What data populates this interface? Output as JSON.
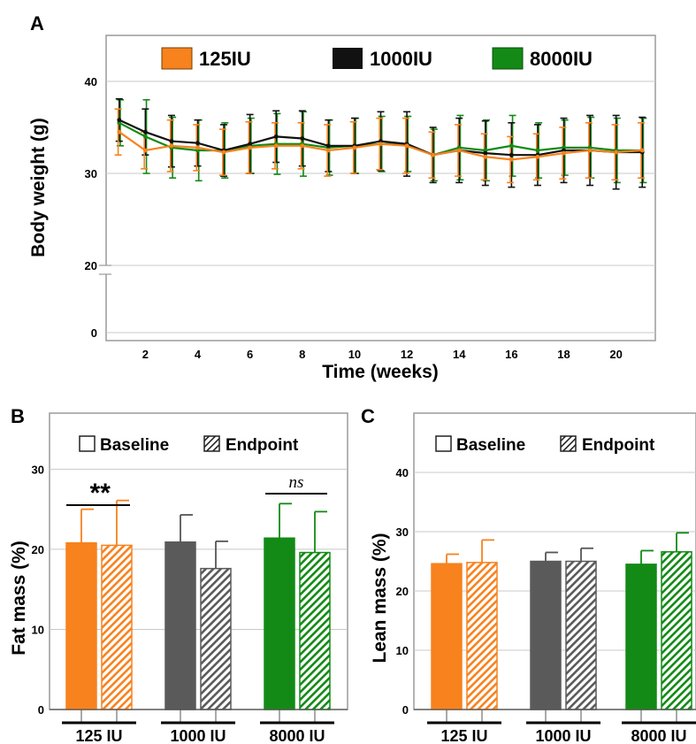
{
  "panel_labels": {
    "a": "A",
    "b": "B",
    "c": "C"
  },
  "colors": {
    "orange": "#f7821e",
    "black": "#111111",
    "green": "#138a16",
    "grey": "#5a5a5a"
  },
  "chart_data": [
    {
      "type": "line",
      "panel": "A",
      "xlabel": "Time (weeks)",
      "ylabel": "Body weight (g)",
      "xlim": [
        0.5,
        21.5
      ],
      "xticks": [
        2,
        4,
        6,
        8,
        10,
        12,
        14,
        16,
        18,
        20
      ],
      "yticks": [
        0,
        20,
        30,
        40
      ],
      "axis_break": "between 0 and 20",
      "grid": true,
      "legend_position": "top",
      "x": [
        1,
        2,
        3,
        4,
        5,
        6,
        7,
        8,
        9,
        10,
        11,
        12,
        13,
        14,
        15,
        16,
        17,
        18,
        19,
        20,
        21
      ],
      "series": [
        {
          "name": "125IU",
          "color": "#f7821e",
          "values": [
            34.5,
            32.5,
            33.0,
            32.8,
            32.3,
            32.8,
            33.0,
            33.0,
            32.5,
            32.8,
            33.2,
            33.0,
            32.0,
            32.5,
            31.8,
            31.5,
            31.8,
            32.2,
            32.5,
            32.3,
            32.5
          ],
          "errors": [
            2.5,
            2.0,
            2.8,
            2.5,
            2.5,
            2.8,
            2.5,
            2.5,
            2.8,
            2.8,
            2.8,
            3.0,
            2.5,
            2.8,
            2.5,
            2.5,
            2.5,
            2.8,
            3.0,
            3.0,
            3.0
          ]
        },
        {
          "name": "1000IU",
          "color": "#111111",
          "values": [
            35.8,
            34.5,
            33.5,
            33.3,
            32.5,
            33.2,
            34.0,
            33.8,
            33.0,
            33.0,
            33.5,
            33.2,
            32.0,
            32.5,
            32.2,
            32.0,
            32.0,
            32.5,
            32.5,
            32.3,
            32.3
          ],
          "errors": [
            2.3,
            2.5,
            2.8,
            2.5,
            2.8,
            3.2,
            2.8,
            3.0,
            2.8,
            3.0,
            3.2,
            3.5,
            3.0,
            3.5,
            3.5,
            3.5,
            3.3,
            3.5,
            3.8,
            4.0,
            3.8
          ]
        },
        {
          "name": "8000IU",
          "color": "#138a16",
          "values": [
            35.5,
            34.0,
            32.8,
            32.5,
            32.5,
            33.0,
            33.2,
            33.2,
            32.8,
            33.0,
            33.2,
            33.2,
            32.0,
            32.8,
            32.5,
            33.0,
            32.5,
            32.8,
            32.8,
            32.5,
            32.5
          ],
          "errors": [
            2.5,
            4.0,
            3.3,
            3.3,
            3.0,
            3.0,
            3.3,
            3.5,
            3.0,
            3.0,
            3.0,
            3.0,
            2.8,
            3.5,
            3.3,
            3.3,
            3.0,
            3.0,
            3.3,
            3.5,
            3.5
          ]
        }
      ]
    },
    {
      "type": "bar",
      "panel": "B",
      "ylabel": "Fat mass (%)",
      "ylim": [
        0,
        37
      ],
      "yticks": [
        0,
        10,
        20,
        30
      ],
      "grid": true,
      "legend": [
        "Baseline",
        "Endpoint"
      ],
      "legend_position": "top",
      "categories": [
        "125 IU",
        "1000 IU",
        "8000 IU"
      ],
      "series": [
        {
          "name": "Baseline",
          "values": [
            20.8,
            20.9,
            21.4
          ],
          "errors": [
            4.2,
            3.4,
            4.3
          ]
        },
        {
          "name": "Endpoint",
          "values": [
            20.5,
            17.6,
            19.6
          ],
          "errors": [
            5.6,
            3.4,
            5.1
          ]
        }
      ],
      "annotations": [
        {
          "text": "**",
          "groups": [
            "125 IU"
          ]
        },
        {
          "text": "ns",
          "groups": [
            "8000 IU"
          ]
        }
      ]
    },
    {
      "type": "bar",
      "panel": "C",
      "ylabel": "Lean mass (%)",
      "ylim": [
        0,
        50
      ],
      "yticks": [
        0,
        10,
        20,
        30,
        40
      ],
      "grid": true,
      "legend": [
        "Baseline",
        "Endpoint"
      ],
      "legend_position": "top",
      "categories": [
        "125 IU",
        "1000 IU",
        "8000 IU"
      ],
      "series": [
        {
          "name": "Baseline",
          "values": [
            24.6,
            25.0,
            24.5
          ],
          "errors": [
            1.6,
            1.5,
            2.3
          ]
        },
        {
          "name": "Endpoint",
          "values": [
            24.8,
            25.0,
            26.6
          ],
          "errors": [
            3.8,
            2.2,
            3.2
          ]
        }
      ]
    }
  ]
}
